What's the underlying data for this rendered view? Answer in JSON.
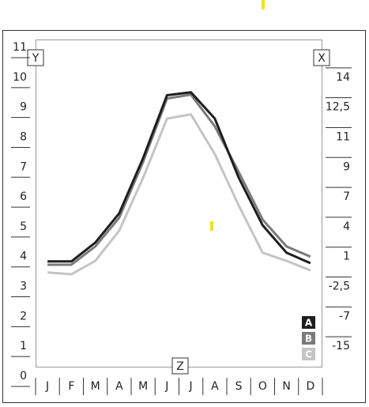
{
  "chart_data": {
    "type": "line",
    "y_label": "Y",
    "x_label": "X",
    "z_label": "Z",
    "categories": [
      "J",
      "F",
      "M",
      "A",
      "M",
      "J",
      "J",
      "A",
      "S",
      "O",
      "N",
      "D"
    ],
    "series": [
      {
        "name": "A",
        "color": "#1e1e1e",
        "values": [
          3.84,
          3.84,
          4.47,
          5.45,
          7.3,
          9.4,
          9.5,
          8.62,
          6.64,
          5.05,
          4.13,
          3.78
        ]
      },
      {
        "name": "B",
        "color": "#7a7a7a",
        "values": [
          3.73,
          3.73,
          4.34,
          5.3,
          7.17,
          9.29,
          9.42,
          8.36,
          6.83,
          5.24,
          4.34,
          4.0
        ]
      },
      {
        "name": "C",
        "color": "#c4c4c4",
        "values": [
          3.47,
          3.41,
          3.86,
          4.87,
          6.64,
          8.62,
          8.76,
          7.43,
          5.71,
          4.13,
          3.86,
          3.54
        ]
      }
    ],
    "ylim": [
      0,
      11
    ],
    "yticks": [
      0,
      1,
      2,
      3,
      4,
      5,
      6,
      7,
      8,
      9,
      10,
      11
    ],
    "y2ticks": [
      14,
      {
        "value": 12.5,
        "label": "12,5"
      },
      11,
      9,
      7,
      4,
      1,
      {
        "value": -2.5,
        "label": "-2,5"
      },
      -7,
      -15
    ]
  }
}
